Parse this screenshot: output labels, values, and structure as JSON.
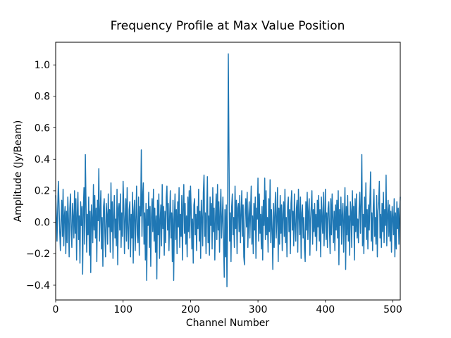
{
  "figure": {
    "background": "#ffffff"
  },
  "chart_data": {
    "type": "line",
    "title": "Frequency Profile at Max Value Position",
    "xlabel": "Channel Number",
    "ylabel": "Amplitude (Jy/Beam)",
    "xlim": [
      0,
      511
    ],
    "ylim": [
      -0.494,
      1.144
    ],
    "xticks": [
      0,
      100,
      200,
      300,
      400,
      500
    ],
    "xtick_labels": [
      "0",
      "100",
      "200",
      "300",
      "400",
      "500"
    ],
    "yticks": [
      -0.4,
      -0.2,
      0.0,
      0.2,
      0.4,
      0.6,
      0.8,
      1.0
    ],
    "ytick_labels": [
      "−0.4",
      "−0.2",
      "0.0",
      "0.2",
      "0.4",
      "0.6",
      "0.8",
      "1.0"
    ],
    "grid": false,
    "legend": null,
    "line_color": "#1f77b4",
    "line_width": 1.5,
    "x_start": 0,
    "x_step": 1,
    "peak": {
      "channel": 256,
      "value": 1.07
    },
    "values": [
      0.17,
      0.05,
      -0.12,
      0.08,
      0.26,
      0.11,
      -0.06,
      -0.18,
      0.02,
      0.14,
      -0.09,
      0.21,
      -0.15,
      0.04,
      0.1,
      -0.2,
      0.07,
      -0.13,
      0.16,
      0.02,
      -0.22,
      0.09,
      0.18,
      -0.05,
      -0.16,
      0.12,
      0.03,
      -0.1,
      0.2,
      -0.07,
      0.15,
      -0.24,
      0.06,
      0.19,
      -0.11,
      0.04,
      -0.26,
      0.13,
      -0.02,
      0.1,
      -0.33,
      0.08,
      0.22,
      -0.14,
      0.43,
      0.12,
      -0.19,
      0.05,
      -0.08,
      0.16,
      -0.21,
      0.07,
      -0.32,
      0.11,
      0.02,
      -0.13,
      0.24,
      -0.05,
      0.17,
      -0.1,
      0.09,
      -0.25,
      0.14,
      0.01,
      0.34,
      -0.12,
      0.06,
      0.2,
      -0.17,
      0.03,
      -0.28,
      0.1,
      0.15,
      -0.07,
      -0.22,
      0.12,
      0.05,
      -0.14,
      0.18,
      -0.03,
      0.08,
      -0.19,
      0.25,
      -0.06,
      0.13,
      -0.23,
      0.04,
      0.17,
      -0.1,
      0.02,
      -0.15,
      0.21,
      -0.27,
      0.09,
      0.12,
      -0.05,
      0.18,
      -0.16,
      0.06,
      -0.09,
      0.26,
      0.11,
      -0.2,
      0.03,
      0.15,
      -0.12,
      0.22,
      -0.04,
      -0.17,
      0.08,
      0.13,
      -0.22,
      0.05,
      -0.1,
      0.19,
      -0.26,
      0.07,
      0.14,
      -0.18,
      0.02,
      0.23,
      -0.08,
      -0.13,
      0.16,
      -0.21,
      0.1,
      0.04,
      0.46,
      -0.09,
      0.17,
      0.25,
      -0.14,
      0.06,
      -0.24,
      0.12,
      -0.37,
      0.08,
      -0.02,
      0.19,
      -0.16,
      0.1,
      -0.28,
      0.03,
      0.15,
      -0.06,
      0.21,
      -0.12,
      0.09,
      -0.19,
      0.04,
      -0.36,
      0.14,
      -0.08,
      0.18,
      -0.23,
      0.02,
      0.11,
      -0.15,
      0.24,
      -0.04,
      0.1,
      -0.21,
      0.07,
      -0.13,
      0.16,
      0.23,
      -0.05,
      0.12,
      -0.18,
      0.03,
      0.2,
      -0.1,
      0.06,
      -0.25,
      0.14,
      -0.37,
      0.02,
      0.18,
      -0.11,
      0.08,
      -0.2,
      0.13,
      -0.03,
      0.22,
      -0.16,
      0.05,
      -0.09,
      0.17,
      -0.24,
      0.1,
      0.24,
      -0.07,
      0.12,
      -0.14,
      0.04,
      -0.22,
      0.16,
      -0.06,
      0.2,
      -0.1,
      0.23,
      0.07,
      -0.17,
      0.02,
      -0.26,
      0.11,
      0.15,
      -0.08,
      0.05,
      -0.18,
      0.1,
      -0.04,
      0.21,
      -0.12,
      0.07,
      -0.23,
      0.14,
      0.03,
      -0.15,
      0.19,
      0.3,
      -0.09,
      0.06,
      -0.2,
      0.08,
      0.29,
      -0.13,
      0.04,
      -0.21,
      0.16,
      -0.02,
      0.12,
      -0.17,
      0.22,
      -0.06,
      0.09,
      -0.24,
      0.03,
      0.18,
      -0.11,
      0.24,
      -0.05,
      0.13,
      -0.19,
      0.07,
      0.21,
      -0.1,
      0.02,
      0.16,
      -0.14,
      -0.35,
      0.08,
      -0.22,
      0.11,
      -0.41,
      0.04,
      1.07,
      0.43,
      -0.12,
      0.06,
      -0.25,
      0.1,
      0.18,
      -0.08,
      0.03,
      -0.16,
      0.23,
      -0.04,
      0.14,
      -0.2,
      0.09,
      0.12,
      -0.06,
      0.17,
      -0.13,
      0.05,
      0.2,
      -0.09,
      0.11,
      -0.22,
      -0.27,
      0.08,
      0.15,
      -0.03,
      0.19,
      -0.16,
      0.02,
      0.13,
      -0.1,
      0.07,
      0.23,
      -0.14,
      0.04,
      -0.2,
      0.12,
      -0.05,
      0.16,
      -0.23,
      0.09,
      0.02,
      0.28,
      -0.12,
      0.18,
      -0.07,
      0.05,
      -0.17,
      0.1,
      -0.24,
      0.14,
      -0.02,
      0.28,
      -0.11,
      0.2,
      -0.08,
      0.03,
      -0.19,
      0.15,
      -0.06,
      0.27,
      -0.13,
      0.08,
      -0.04,
      -0.3,
      0.12,
      -0.16,
      0.06,
      0.19,
      -0.1,
      0.02,
      0.22,
      -0.25,
      0.09,
      -0.14,
      0.17,
      -0.07,
      0.11,
      -0.18,
      0.05,
      0.13,
      -0.09,
      0.21,
      -0.13,
      0.03,
      -0.22,
      0.1,
      0.16,
      -0.06,
      0.08,
      -0.2,
      0.12,
      0.2,
      -0.05,
      0.07,
      -0.15,
      0.18,
      -0.02,
      -0.12,
      0.09,
      0.14,
      -0.19,
      0.21,
      0.04,
      -0.08,
      0.16,
      -0.23,
      0.06,
      0.11,
      -0.1,
      0.03,
      -0.17,
      -0.25,
      0.13,
      -0.05,
      0.19,
      -0.11,
      0.07,
      0.15,
      -0.21,
      0.02,
      0.1,
      0.2,
      -0.14,
      0.08,
      -0.06,
      0.12,
      -0.09,
      0.05,
      -0.18,
      0.14,
      -0.03,
      0.17,
      -0.12,
      0.08,
      -0.22,
      0.16,
      0.02,
      -0.07,
      0.19,
      -0.15,
      0.04,
      0.21,
      -0.11,
      0.06,
      -0.16,
      0.09,
      0.13,
      -0.04,
      -0.2,
      0.15,
      -0.08,
      0.18,
      0.03,
      -0.13,
      0.07,
      -0.18,
      0.11,
      -0.05,
      0.14,
      -0.1,
      0.2,
      -0.27,
      0.08,
      -0.02,
      0.16,
      -0.14,
      0.05,
      0.12,
      -0.19,
      0.03,
      0.22,
      -0.3,
      0.1,
      -0.08,
      0.17,
      -0.12,
      0.04,
      -0.21,
      0.13,
      0.07,
      -0.16,
      0.2,
      -0.02,
      0.1,
      -0.24,
      0.15,
      -0.06,
      0.18,
      -0.1,
      0.02,
      -0.13,
      0.09,
      0.19,
      -0.07,
      0.12,
      0.43,
      -0.15,
      0.05,
      -0.2,
      0.16,
      -0.03,
      0.25,
      -0.11,
      0.08,
      -0.17,
      0.11,
      -0.05,
      0.14,
      0.32,
      -0.12,
      0.06,
      -0.18,
      0.1,
      0.21,
      -0.09,
      0.03,
      -0.14,
      0.17,
      -0.22,
      0.07,
      0.13,
      0.26,
      -0.1,
      0.05,
      -0.16,
      0.12,
      -0.06,
      0.19,
      -0.13,
      0.08,
      -0.02,
      0.3,
      -0.15,
      0.04,
      0.14,
      -0.09,
      0.11,
      -0.12,
      0.07,
      -0.19,
      0.1,
      0.03,
      -0.08,
      0.15,
      -0.22,
      0.06,
      -0.17,
      0.13,
      -0.04,
      0.09,
      -0.14,
      0.05,
      0.16
    ]
  }
}
